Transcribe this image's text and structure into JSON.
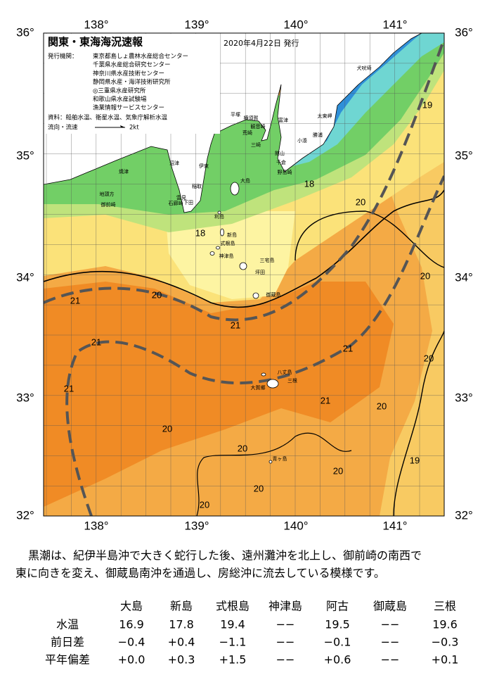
{
  "header": {
    "title": "関東・東海海況速報",
    "date": "2020年4月22日 発行",
    "issuer_label": "発行機関：",
    "issuers": [
      "東京都島しょ農林水産総合センター",
      "千葉県水産総合研究センター",
      "神奈川県水産技術センター",
      "静岡県水産・海洋技術研究所",
      "◎三重県水産研究所",
      "和歌山県水産試験場",
      "漁業情報サービスセンター"
    ],
    "sources": "資料：船舶水温、衛星水温、気象庁解析水温",
    "legend_label": "流向・流速",
    "legend_speed": "2kt"
  },
  "map": {
    "lon_labels": [
      "138°",
      "139°",
      "140°",
      "141°"
    ],
    "lat_labels": [
      "36°",
      "35°",
      "34°",
      "33°",
      "32°"
    ],
    "places": [
      "犬吠埼",
      "太東岬",
      "勝浦",
      "小湊",
      "館山",
      "千倉",
      "野島崎",
      "富津",
      "横須賀",
      "観音崎",
      "荒崎",
      "三崎",
      "平塚",
      "小田原",
      "伊東",
      "稲取",
      "雲見",
      "下田",
      "石廊崎",
      "沼津",
      "焼津",
      "地頭方",
      "御前崎",
      "大島",
      "利島",
      "新島",
      "式根島",
      "神津島",
      "三宅島",
      "坪田",
      "御蔵島",
      "八丈島",
      "三根",
      "大賀郷",
      "青ヶ島"
    ],
    "contour_labels": [
      "19",
      "18",
      "20",
      "18",
      "20",
      "21",
      "20",
      "21",
      "21",
      "21",
      "20",
      "21",
      "21",
      "20",
      "20",
      "20",
      "19",
      "20",
      "20",
      "20"
    ]
  },
  "description": [
    "黒潮は、紀伊半島沖で大きく蛇行した後、遠州灘沖を北上し、御前崎の南西で",
    "東に向きを変え、御蔵島南沖を通過し、房総沖に流去している模様です。"
  ],
  "table": {
    "columns": [
      "大島",
      "新島",
      "式根島",
      "神津島",
      "阿古",
      "御蔵島",
      "三根"
    ],
    "rows": [
      {
        "label": "水温",
        "cells": [
          "16.9",
          "17.8",
          "19.4",
          "−−",
          "19.5",
          "−−",
          "19.6"
        ]
      },
      {
        "label": "前日差",
        "cells": [
          "−0.4",
          "+0.4",
          "−1.1",
          "−−",
          "−0.1",
          "−−",
          "−0.3"
        ]
      },
      {
        "label": "平年偏差",
        "cells": [
          "+0.0",
          "+0.3",
          "+1.5",
          "−−",
          "+0.6",
          "−−",
          "+0.1"
        ]
      }
    ]
  }
}
